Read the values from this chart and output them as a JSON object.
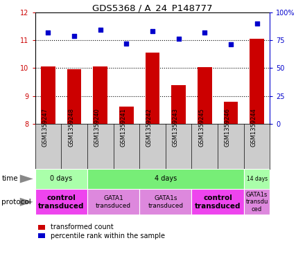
{
  "title": "GDS5368 / A_24_P148777",
  "samples": [
    "GSM1359247",
    "GSM1359248",
    "GSM1359240",
    "GSM1359241",
    "GSM1359242",
    "GSM1359243",
    "GSM1359245",
    "GSM1359246",
    "GSM1359244"
  ],
  "transformed_counts": [
    10.05,
    9.95,
    10.05,
    8.62,
    10.55,
    9.38,
    10.02,
    8.78,
    11.05
  ],
  "percentile_ranks": [
    82,
    79,
    84,
    72,
    83,
    76,
    82,
    71,
    90
  ],
  "ylim_left": [
    8,
    12
  ],
  "ylim_right": [
    0,
    100
  ],
  "yticks_left": [
    8,
    9,
    10,
    11,
    12
  ],
  "yticks_right": [
    0,
    25,
    50,
    75,
    100
  ],
  "bar_color": "#cc0000",
  "dot_color": "#0000cc",
  "bar_bottom": 8,
  "time_groups": [
    {
      "label": "0 days",
      "start": 0,
      "end": 2,
      "color": "#aaffaa"
    },
    {
      "label": "4 days",
      "start": 2,
      "end": 8,
      "color": "#77ee77"
    },
    {
      "label": "14 days",
      "start": 8,
      "end": 9,
      "color": "#aaffaa"
    }
  ],
  "protocol_groups": [
    {
      "label": "control\ntransduced",
      "start": 0,
      "end": 2,
      "color": "#ee44ee",
      "fontsize": 7.5,
      "bold": true
    },
    {
      "label": "GATA1\ntransduced",
      "start": 2,
      "end": 4,
      "color": "#dd88dd",
      "fontsize": 6.5,
      "bold": false
    },
    {
      "label": "GATA1s\ntransduced",
      "start": 4,
      "end": 6,
      "color": "#dd88dd",
      "fontsize": 6.5,
      "bold": false
    },
    {
      "label": "control\ntransduced",
      "start": 6,
      "end": 8,
      "color": "#ee44ee",
      "fontsize": 7.5,
      "bold": true
    },
    {
      "label": "GATA1s\ntransdu\nced",
      "start": 8,
      "end": 9,
      "color": "#dd88dd",
      "fontsize": 6.0,
      "bold": false
    }
  ],
  "sample_box_color": "#cccccc",
  "legend_red_label": "transformed count",
  "legend_blue_label": "percentile rank within the sample"
}
